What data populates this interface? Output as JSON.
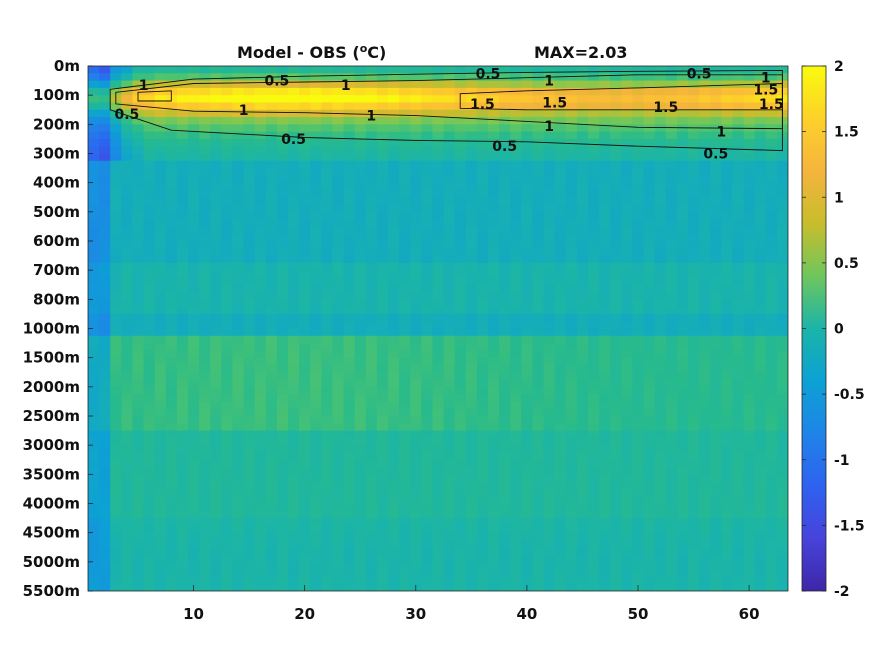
{
  "chart_data": {
    "type": "heatmap",
    "title": "Model - OBS (",
    "title_unit_o": "o",
    "title_unit_c": "C)",
    "max_label": "MAX=2.03",
    "x_ticks": [
      10,
      20,
      30,
      40,
      50,
      60
    ],
    "x_range": [
      1,
      63
    ],
    "y_levels": [
      "0m",
      "100m",
      "200m",
      "300m",
      "400m",
      "500m",
      "600m",
      "700m",
      "800m",
      "1000m",
      "1500m",
      "2000m",
      "2500m",
      "3000m",
      "3500m",
      "4000m",
      "4500m",
      "5000m",
      "5500m"
    ],
    "colorbar_ticks": [
      "2",
      "1.5",
      "1",
      "0.5",
      "0",
      "-0.5",
      "-1",
      "-1.5",
      "-2"
    ],
    "colorbar_range": [
      -2,
      2
    ],
    "contour_levels": [
      0.5,
      1,
      1.5
    ],
    "contour_labels": [
      {
        "text": "1",
        "x": 5.5,
        "y": 0.65
      },
      {
        "text": "0.5",
        "x": 17.5,
        "y": 0.5
      },
      {
        "text": "1",
        "x": 23.7,
        "y": 0.65
      },
      {
        "text": "0.5",
        "x": 36.5,
        "y": 0.25
      },
      {
        "text": "1",
        "x": 42,
        "y": 0.5
      },
      {
        "text": "0.5",
        "x": 55.5,
        "y": 0.25
      },
      {
        "text": "1",
        "x": 61.5,
        "y": 0.4
      },
      {
        "text": "1.5",
        "x": 61.5,
        "y": 0.8
      },
      {
        "text": "1.5",
        "x": 62,
        "y": 1.3
      },
      {
        "text": "0.5",
        "x": 4,
        "y": 1.65
      },
      {
        "text": "1",
        "x": 14.5,
        "y": 1.5
      },
      {
        "text": "1",
        "x": 26,
        "y": 1.7
      },
      {
        "text": "1.5",
        "x": 36,
        "y": 1.3
      },
      {
        "text": "1.5",
        "x": 42.5,
        "y": 1.25
      },
      {
        "text": "1.5",
        "x": 52.5,
        "y": 1.4
      },
      {
        "text": "1",
        "x": 42,
        "y": 2.05
      },
      {
        "text": "1",
        "x": 57.5,
        "y": 2.25
      },
      {
        "text": "0.5",
        "x": 19,
        "y": 2.5
      },
      {
        "text": "0.5",
        "x": 38,
        "y": 2.75
      },
      {
        "text": "0.5",
        "x": 57,
        "y": 3.0
      }
    ],
    "colors": {
      "max": "#f9fb0e",
      "high": "#f8ba3e",
      "mid": "#35b779",
      "zero": "#12b5bb",
      "low": "#2a7fd9",
      "min": "#3e26a8"
    }
  }
}
